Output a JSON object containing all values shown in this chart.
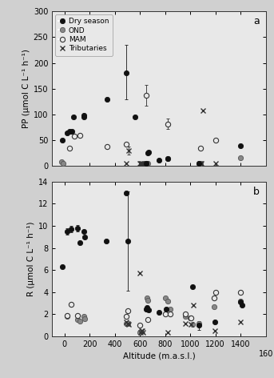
{
  "pp_dry": {
    "x": [
      -20,
      20,
      40,
      60,
      70,
      150,
      155,
      340,
      490,
      560,
      650,
      660,
      670,
      750,
      820,
      1070,
      1400
    ],
    "y": [
      50,
      65,
      67,
      68,
      95,
      98,
      95,
      130,
      180,
      95,
      5,
      25,
      27,
      12,
      14,
      5,
      40
    ],
    "yerr_lo": [
      0,
      0,
      0,
      0,
      0,
      0,
      0,
      0,
      50,
      0,
      0,
      0,
      0,
      0,
      0,
      0,
      0
    ],
    "yerr_hi": [
      0,
      0,
      0,
      0,
      0,
      0,
      0,
      0,
      55,
      0,
      0,
      0,
      0,
      0,
      0,
      0,
      0
    ]
  },
  "pp_ond": {
    "x": [
      -25,
      -10,
      650,
      660,
      820,
      1070,
      1080,
      1400
    ],
    "y": [
      8,
      5,
      5,
      5,
      15,
      5,
      5,
      17
    ]
  },
  "pp_mam": {
    "x": [
      40,
      80,
      120,
      340,
      490,
      650,
      820,
      1080,
      1200
    ],
    "y": [
      35,
      58,
      60,
      38,
      42,
      137,
      82,
      35,
      50
    ],
    "yerr_lo": [
      0,
      0,
      0,
      0,
      0,
      20,
      10,
      0,
      0
    ],
    "yerr_hi": [
      0,
      0,
      0,
      0,
      0,
      20,
      10,
      0,
      0
    ]
  },
  "pp_trib": {
    "x": [
      490,
      510,
      598,
      602,
      608,
      614,
      650,
      1080,
      1090,
      1100,
      1200
    ],
    "y": [
      5,
      30,
      5,
      5,
      5,
      5,
      5,
      5,
      5,
      108,
      5
    ],
    "yerr_lo": [
      0,
      8,
      0,
      0,
      0,
      0,
      0,
      0,
      0,
      0,
      0
    ],
    "yerr_hi": [
      0,
      8,
      0,
      0,
      0,
      0,
      0,
      0,
      0,
      0,
      0
    ]
  },
  "r_dry": {
    "x": [
      -20,
      20,
      50,
      100,
      120,
      155,
      160,
      330,
      490,
      500,
      648,
      658,
      665,
      750,
      810,
      1020,
      1070,
      1195,
      1400,
      1410
    ],
    "y": [
      6.3,
      9.5,
      9.7,
      9.8,
      8.5,
      9.5,
      9.0,
      8.6,
      13.0,
      8.6,
      2.5,
      2.6,
      2.4,
      2.2,
      2.5,
      4.5,
      1.0,
      1.3,
      3.1,
      2.8
    ],
    "yerr_lo": [
      0,
      0.3,
      0.3,
      0.3,
      0,
      0,
      0,
      0,
      0,
      4.5,
      0,
      0,
      0,
      0,
      0,
      0,
      0.4,
      0,
      0,
      0
    ],
    "yerr_hi": [
      0,
      0.3,
      0.3,
      0.3,
      0,
      0,
      0,
      0,
      0,
      4.5,
      0,
      0,
      0,
      0,
      0,
      0,
      0.4,
      0,
      0,
      0
    ]
  },
  "r_ond": {
    "x": [
      20,
      100,
      120,
      155,
      160,
      490,
      500,
      600,
      655,
      662,
      800,
      820,
      840,
      960,
      1000,
      1020,
      1070,
      1190,
      1400
    ],
    "y": [
      1.8,
      1.5,
      1.4,
      1.8,
      1.6,
      1.2,
      1.2,
      0.4,
      3.5,
      3.3,
      3.5,
      3.2,
      2.5,
      1.8,
      1.7,
      1.1,
      1.2,
      2.7,
      3.2
    ]
  },
  "r_mam": {
    "x": [
      20,
      50,
      100,
      490,
      502,
      600,
      655,
      662,
      800,
      840,
      960,
      1002,
      1190,
      1200,
      1400
    ],
    "y": [
      1.9,
      2.9,
      1.9,
      1.8,
      2.3,
      1.0,
      2.5,
      1.5,
      2.0,
      2.0,
      2.0,
      1.7,
      3.5,
      4.0,
      4.0
    ]
  },
  "r_trib": {
    "x": [
      492,
      502,
      512,
      600,
      605,
      610,
      616,
      622,
      820,
      960,
      1002,
      1022,
      1195,
      1400
    ],
    "y": [
      1.3,
      1.2,
      1.1,
      5.7,
      0.4,
      0.5,
      0.5,
      0.4,
      0.4,
      1.2,
      1.1,
      2.8,
      0.5,
      1.3
    ]
  },
  "xlabel": "Altitude (m.a.s.l.)",
  "ylabel_a": "PP (μmol C L⁻¹ h⁻¹)",
  "ylabel_b": "R (μmol C L⁻¹ h⁻¹)",
  "xlim": [
    -100,
    1600
  ],
  "ylim_a": [
    0,
    300
  ],
  "ylim_b": [
    0,
    14
  ],
  "xticks": [
    0,
    200,
    400,
    600,
    800,
    1000,
    1200,
    1400
  ],
  "xticklabels": [
    "0",
    "200",
    "400",
    "600",
    "800",
    "1000",
    "1200",
    "1400"
  ],
  "yticks_a": [
    0,
    50,
    100,
    150,
    200,
    250,
    300
  ],
  "yticks_b": [
    0,
    2,
    4,
    6,
    8,
    10,
    12,
    14
  ],
  "label_a": "a",
  "label_b": "b",
  "bg_color": "#e8e8e8",
  "fig_bg": "#d0d0d0"
}
